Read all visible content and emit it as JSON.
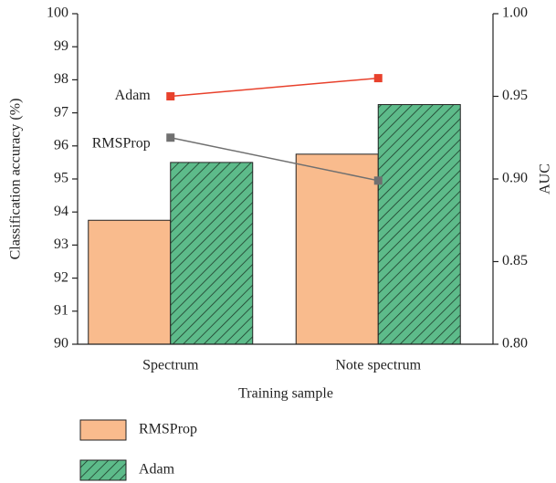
{
  "chart_data": {
    "type": "bar",
    "xlabel": "Training sample",
    "ylabel": "Classification accuracy (%)",
    "y2label": "AUC",
    "categories": [
      "Spectrum",
      "Note spectrum"
    ],
    "ylim": [
      90,
      100
    ],
    "yticks": [
      90,
      91,
      92,
      93,
      94,
      95,
      96,
      97,
      98,
      99,
      100
    ],
    "y2lim": [
      0.8,
      1.0
    ],
    "y2ticks": [
      {
        "value": 0.8,
        "label": "0.80"
      },
      0.85,
      {
        "value": 0.9,
        "label": "0.90"
      },
      0.95,
      {
        "value": 1.0,
        "label": "1.00"
      }
    ],
    "series": [
      {
        "name": "RMSProp",
        "type": "bar",
        "color": "#f9bb8d",
        "values": [
          93.75,
          95.75
        ]
      },
      {
        "name": "Adam",
        "type": "bar",
        "color": "#5dbb8a",
        "hatch": true,
        "values": [
          95.5,
          97.25
        ]
      },
      {
        "name": "Adam",
        "type": "line",
        "axis": "y2",
        "color": "#e8412c",
        "values": [
          0.95,
          0.961
        ]
      },
      {
        "name": "RMSProp",
        "type": "line",
        "axis": "y2",
        "color": "#707070",
        "values": [
          0.925,
          0.899
        ]
      }
    ]
  }
}
